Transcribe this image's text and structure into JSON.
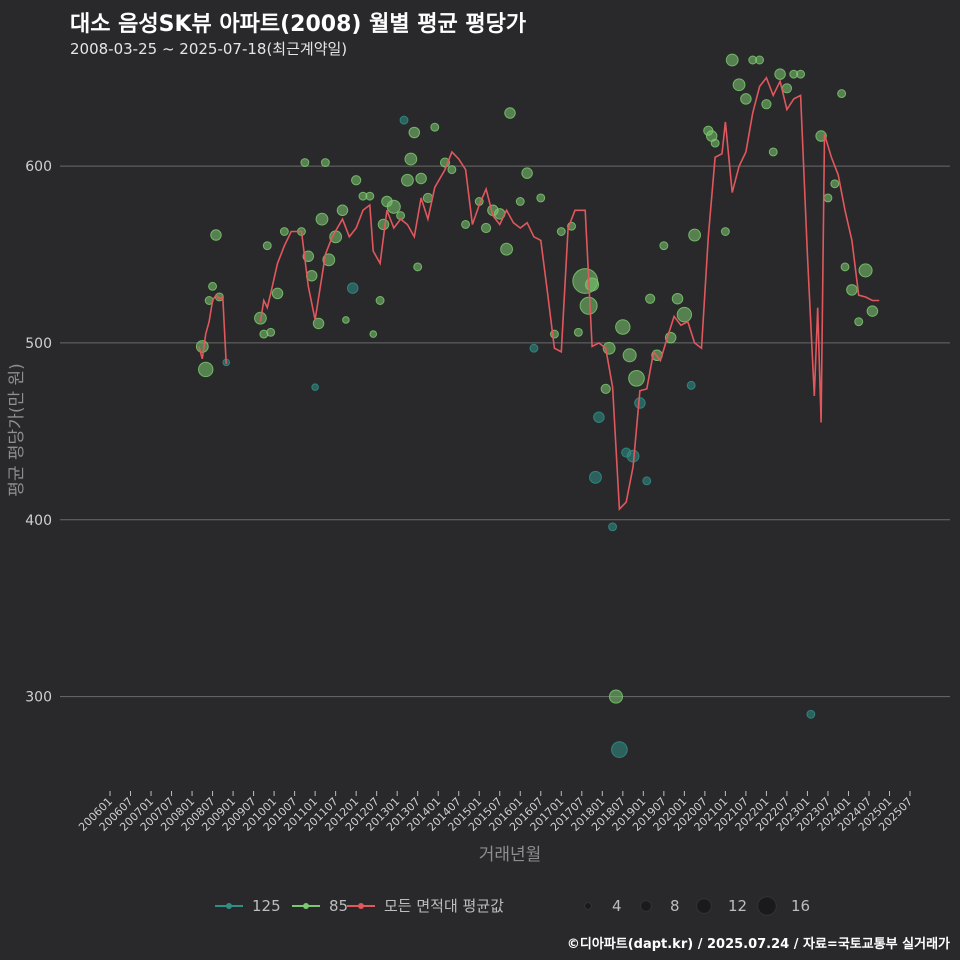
{
  "header": {
    "title": "대소 음성SK뷰 아파트(2008) 월별 평균 평당가",
    "subtitle": "2008-03-25 ~ 2025-07-18(최근계약일)"
  },
  "footer": {
    "credit": "©디아파트(dapt.kr) / 2025.07.24 / 자료=국토교통부 실거래가"
  },
  "colors": {
    "bg": "#29282b",
    "grid": "#6a6a6a",
    "s125": "#2f8f87",
    "s85": "#7bc96f",
    "avg": "#e0585d"
  },
  "chart_data": {
    "type": "line",
    "title": "대소 음성SK뷰 아파트(2008) 월별 평균 평당가",
    "xlabel": "거래년월",
    "ylabel": "평균 평당가(만 원)",
    "ylim": [
      250,
      660
    ],
    "yticks": [
      300,
      400,
      500,
      600
    ],
    "x_range": [
      "2006-01",
      "2025-07"
    ],
    "xticks": [
      "200601",
      "200607",
      "200701",
      "200707",
      "200801",
      "200807",
      "200901",
      "200907",
      "201001",
      "201007",
      "201101",
      "201107",
      "201201",
      "201207",
      "201301",
      "201307",
      "201401",
      "201407",
      "201501",
      "201507",
      "201601",
      "201607",
      "201701",
      "201707",
      "201801",
      "201807",
      "201901",
      "201907",
      "202001",
      "202007",
      "202101",
      "202107",
      "202201",
      "202207",
      "202301",
      "202307",
      "202401",
      "202407",
      "202501",
      "202507"
    ],
    "legend": {
      "area_items": [
        {
          "name": "125",
          "color": "#2f8f87"
        },
        {
          "name": "85",
          "color": "#7bc96f"
        },
        {
          "name": "모든 면적대 평균값",
          "color": "#e0585d"
        }
      ],
      "size_items": [
        4,
        8,
        12,
        16
      ]
    },
    "avg_line": [
      [
        "2008-03",
        498
      ],
      [
        "2008-04",
        491
      ],
      [
        "2008-05",
        505
      ],
      [
        "2008-06",
        512
      ],
      [
        "2008-07",
        524
      ],
      [
        "2008-08",
        527
      ],
      [
        "2008-09",
        525
      ],
      [
        "2008-10",
        526
      ],
      [
        "2008-11",
        488
      ],
      [
        "2009-09",
        512
      ],
      [
        "2009-10",
        524
      ],
      [
        "2009-11",
        520
      ],
      [
        "2009-12",
        528
      ],
      [
        "2010-02",
        545
      ],
      [
        "2010-04",
        555
      ],
      [
        "2010-06",
        563
      ],
      [
        "2010-09",
        563
      ],
      [
        "2010-11",
        532
      ],
      [
        "2011-01",
        513
      ],
      [
        "2011-04",
        550
      ],
      [
        "2011-06",
        560
      ],
      [
        "2011-09",
        570
      ],
      [
        "2011-11",
        560
      ],
      [
        "2012-01",
        565
      ],
      [
        "2012-03",
        575
      ],
      [
        "2012-05",
        578
      ],
      [
        "2012-06",
        552
      ],
      [
        "2012-08",
        545
      ],
      [
        "2012-10",
        575
      ],
      [
        "2012-12",
        565
      ],
      [
        "2013-02",
        570
      ],
      [
        "2013-04",
        567
      ],
      [
        "2013-06",
        560
      ],
      [
        "2013-08",
        582
      ],
      [
        "2013-10",
        570
      ],
      [
        "2013-12",
        588
      ],
      [
        "2014-03",
        598
      ],
      [
        "2014-05",
        608
      ],
      [
        "2014-07",
        604
      ],
      [
        "2014-09",
        598
      ],
      [
        "2014-11",
        567
      ],
      [
        "2015-01",
        578
      ],
      [
        "2015-03",
        587
      ],
      [
        "2015-05",
        572
      ],
      [
        "2015-07",
        567
      ],
      [
        "2015-09",
        575
      ],
      [
        "2015-11",
        568
      ],
      [
        "2016-01",
        565
      ],
      [
        "2016-03",
        568
      ],
      [
        "2016-05",
        560
      ],
      [
        "2016-07",
        558
      ],
      [
        "2016-09",
        528
      ],
      [
        "2016-11",
        497
      ],
      [
        "2017-01",
        495
      ],
      [
        "2017-03",
        565
      ],
      [
        "2017-05",
        575
      ],
      [
        "2017-08",
        575
      ],
      [
        "2017-10",
        498
      ],
      [
        "2017-12",
        500
      ],
      [
        "2018-02",
        497
      ],
      [
        "2018-04",
        475
      ],
      [
        "2018-06",
        406
      ],
      [
        "2018-08",
        410
      ],
      [
        "2018-10",
        430
      ],
      [
        "2018-12",
        473
      ],
      [
        "2019-02",
        474
      ],
      [
        "2019-04",
        495
      ],
      [
        "2019-06",
        490
      ],
      [
        "2019-08",
        503
      ],
      [
        "2019-10",
        515
      ],
      [
        "2019-12",
        510
      ],
      [
        "2020-02",
        512
      ],
      [
        "2020-04",
        500
      ],
      [
        "2020-06",
        497
      ],
      [
        "2020-08",
        560
      ],
      [
        "2020-10",
        605
      ],
      [
        "2020-12",
        607
      ],
      [
        "2021-01",
        625
      ],
      [
        "2021-03",
        585
      ],
      [
        "2021-05",
        600
      ],
      [
        "2021-07",
        608
      ],
      [
        "2021-09",
        630
      ],
      [
        "2021-11",
        645
      ],
      [
        "2022-01",
        650
      ],
      [
        "2022-03",
        640
      ],
      [
        "2022-05",
        648
      ],
      [
        "2022-07",
        632
      ],
      [
        "2022-09",
        638
      ],
      [
        "2022-11",
        640
      ],
      [
        "2023-01",
        550
      ],
      [
        "2023-03",
        470
      ],
      [
        "2023-04",
        520
      ],
      [
        "2023-05",
        455
      ],
      [
        "2023-06",
        618
      ],
      [
        "2023-08",
        605
      ],
      [
        "2023-10",
        595
      ],
      [
        "2023-12",
        575
      ],
      [
        "2024-02",
        558
      ],
      [
        "2024-04",
        527
      ],
      [
        "2024-06",
        526
      ],
      [
        "2024-08",
        524
      ],
      [
        "2024-10",
        524
      ]
    ],
    "points": [
      {
        "x": "2008-04",
        "y": 498,
        "size": 6,
        "series": "85"
      },
      {
        "x": "2008-05",
        "y": 485,
        "size": 8,
        "series": "85"
      },
      {
        "x": "2008-06",
        "y": 524,
        "size": 3,
        "series": "85"
      },
      {
        "x": "2008-07",
        "y": 532,
        "size": 3,
        "series": "85"
      },
      {
        "x": "2008-08",
        "y": 561,
        "size": 5,
        "series": "85"
      },
      {
        "x": "2008-09",
        "y": 526,
        "size": 3,
        "series": "85"
      },
      {
        "x": "2008-11",
        "y": 489,
        "size": 2,
        "series": "125"
      },
      {
        "x": "2009-09",
        "y": 514,
        "size": 6,
        "series": "85"
      },
      {
        "x": "2009-10",
        "y": 505,
        "size": 3,
        "series": "85"
      },
      {
        "x": "2009-11",
        "y": 555,
        "size": 3,
        "series": "85"
      },
      {
        "x": "2009-12",
        "y": 506,
        "size": 3,
        "series": "85"
      },
      {
        "x": "2010-02",
        "y": 528,
        "size": 5,
        "series": "85"
      },
      {
        "x": "2010-04",
        "y": 563,
        "size": 3,
        "series": "85"
      },
      {
        "x": "2010-09",
        "y": 563,
        "size": 3,
        "series": "85"
      },
      {
        "x": "2010-10",
        "y": 602,
        "size": 3,
        "series": "85"
      },
      {
        "x": "2010-11",
        "y": 549,
        "size": 5,
        "series": "85"
      },
      {
        "x": "2010-12",
        "y": 538,
        "size": 5,
        "series": "85"
      },
      {
        "x": "2011-01",
        "y": 475,
        "size": 2,
        "series": "125"
      },
      {
        "x": "2011-02",
        "y": 511,
        "size": 5,
        "series": "85"
      },
      {
        "x": "2011-03",
        "y": 570,
        "size": 6,
        "series": "85"
      },
      {
        "x": "2011-04",
        "y": 602,
        "size": 3,
        "series": "85"
      },
      {
        "x": "2011-05",
        "y": 547,
        "size": 6,
        "series": "85"
      },
      {
        "x": "2011-07",
        "y": 560,
        "size": 6,
        "series": "85"
      },
      {
        "x": "2011-09",
        "y": 575,
        "size": 5,
        "series": "85"
      },
      {
        "x": "2011-10",
        "y": 513,
        "size": 2,
        "series": "85"
      },
      {
        "x": "2011-12",
        "y": 531,
        "size": 5,
        "series": "125"
      },
      {
        "x": "2012-01",
        "y": 592,
        "size": 4,
        "series": "85"
      },
      {
        "x": "2012-03",
        "y": 583,
        "size": 3,
        "series": "85"
      },
      {
        "x": "2012-05",
        "y": 583,
        "size": 3,
        "series": "85"
      },
      {
        "x": "2012-06",
        "y": 505,
        "size": 2,
        "series": "85"
      },
      {
        "x": "2012-08",
        "y": 524,
        "size": 3,
        "series": "85"
      },
      {
        "x": "2012-09",
        "y": 567,
        "size": 5,
        "series": "85"
      },
      {
        "x": "2012-10",
        "y": 580,
        "size": 5,
        "series": "85"
      },
      {
        "x": "2012-12",
        "y": 577,
        "size": 7,
        "series": "85"
      },
      {
        "x": "2013-02",
        "y": 572,
        "size": 3,
        "series": "85"
      },
      {
        "x": "2013-03",
        "y": 626,
        "size": 3,
        "series": "125"
      },
      {
        "x": "2013-04",
        "y": 592,
        "size": 6,
        "series": "85"
      },
      {
        "x": "2013-05",
        "y": 604,
        "size": 6,
        "series": "85"
      },
      {
        "x": "2013-06",
        "y": 619,
        "size": 5,
        "series": "85"
      },
      {
        "x": "2013-07",
        "y": 543,
        "size": 3,
        "series": "85"
      },
      {
        "x": "2013-08",
        "y": 593,
        "size": 5,
        "series": "85"
      },
      {
        "x": "2013-10",
        "y": 582,
        "size": 4,
        "series": "85"
      },
      {
        "x": "2013-12",
        "y": 622,
        "size": 3,
        "series": "85"
      },
      {
        "x": "2014-03",
        "y": 602,
        "size": 4,
        "series": "85"
      },
      {
        "x": "2014-05",
        "y": 598,
        "size": 3,
        "series": "85"
      },
      {
        "x": "2014-09",
        "y": 567,
        "size": 3,
        "series": "85"
      },
      {
        "x": "2015-01",
        "y": 580,
        "size": 3,
        "series": "85"
      },
      {
        "x": "2015-03",
        "y": 565,
        "size": 4,
        "series": "85"
      },
      {
        "x": "2015-05",
        "y": 575,
        "size": 5,
        "series": "85"
      },
      {
        "x": "2015-07",
        "y": 573,
        "size": 5,
        "series": "85"
      },
      {
        "x": "2015-09",
        "y": 553,
        "size": 6,
        "series": "85"
      },
      {
        "x": "2015-10",
        "y": 630,
        "size": 5,
        "series": "85"
      },
      {
        "x": "2016-01",
        "y": 580,
        "size": 3,
        "series": "85"
      },
      {
        "x": "2016-03",
        "y": 596,
        "size": 5,
        "series": "85"
      },
      {
        "x": "2016-05",
        "y": 497,
        "size": 3,
        "series": "125"
      },
      {
        "x": "2016-07",
        "y": 582,
        "size": 3,
        "series": "85"
      },
      {
        "x": "2016-11",
        "y": 505,
        "size": 3,
        "series": "85"
      },
      {
        "x": "2017-01",
        "y": 563,
        "size": 3,
        "series": "85"
      },
      {
        "x": "2017-04",
        "y": 566,
        "size": 3,
        "series": "85"
      },
      {
        "x": "2017-06",
        "y": 506,
        "size": 3,
        "series": "85"
      },
      {
        "x": "2017-08",
        "y": 535,
        "size": 16,
        "series": "85"
      },
      {
        "x": "2017-09",
        "y": 521,
        "size": 10,
        "series": "85"
      },
      {
        "x": "2017-10",
        "y": 533,
        "size": 7,
        "series": "85"
      },
      {
        "x": "2017-11",
        "y": 424,
        "size": 6,
        "series": "125"
      },
      {
        "x": "2017-12",
        "y": 458,
        "size": 5,
        "series": "125"
      },
      {
        "x": "2018-02",
        "y": 474,
        "size": 4,
        "series": "85"
      },
      {
        "x": "2018-03",
        "y": 497,
        "size": 6,
        "series": "85"
      },
      {
        "x": "2018-04",
        "y": 396,
        "size": 3,
        "series": "125"
      },
      {
        "x": "2018-05",
        "y": 300,
        "size": 7,
        "series": "85"
      },
      {
        "x": "2018-06",
        "y": 270,
        "size": 9,
        "series": "125"
      },
      {
        "x": "2018-07",
        "y": 509,
        "size": 8,
        "series": "85"
      },
      {
        "x": "2018-08",
        "y": 438,
        "size": 4,
        "series": "125"
      },
      {
        "x": "2018-09",
        "y": 493,
        "size": 7,
        "series": "85"
      },
      {
        "x": "2018-10",
        "y": 436,
        "size": 6,
        "series": "125"
      },
      {
        "x": "2018-11",
        "y": 480,
        "size": 9,
        "series": "85"
      },
      {
        "x": "2018-12",
        "y": 466,
        "size": 5,
        "series": "125"
      },
      {
        "x": "2019-02",
        "y": 422,
        "size": 3,
        "series": "125"
      },
      {
        "x": "2019-03",
        "y": 525,
        "size": 4,
        "series": "85"
      },
      {
        "x": "2019-05",
        "y": 493,
        "size": 5,
        "series": "85"
      },
      {
        "x": "2019-07",
        "y": 555,
        "size": 3,
        "series": "85"
      },
      {
        "x": "2019-09",
        "y": 503,
        "size": 5,
        "series": "85"
      },
      {
        "x": "2019-11",
        "y": 525,
        "size": 5,
        "series": "85"
      },
      {
        "x": "2020-01",
        "y": 516,
        "size": 8,
        "series": "85"
      },
      {
        "x": "2020-03",
        "y": 476,
        "size": 3,
        "series": "125"
      },
      {
        "x": "2020-04",
        "y": 561,
        "size": 6,
        "series": "85"
      },
      {
        "x": "2020-08",
        "y": 620,
        "size": 4,
        "series": "85"
      },
      {
        "x": "2020-09",
        "y": 617,
        "size": 5,
        "series": "85"
      },
      {
        "x": "2020-10",
        "y": 613,
        "size": 3,
        "series": "85"
      },
      {
        "x": "2021-01",
        "y": 563,
        "size": 3,
        "series": "85"
      },
      {
        "x": "2021-03",
        "y": 660,
        "size": 6,
        "series": "85"
      },
      {
        "x": "2021-05",
        "y": 646,
        "size": 6,
        "series": "85"
      },
      {
        "x": "2021-07",
        "y": 638,
        "size": 5,
        "series": "85"
      },
      {
        "x": "2021-09",
        "y": 660,
        "size": 3,
        "series": "85"
      },
      {
        "x": "2021-11",
        "y": 660,
        "size": 3,
        "series": "85"
      },
      {
        "x": "2022-01",
        "y": 635,
        "size": 4,
        "series": "85"
      },
      {
        "x": "2022-03",
        "y": 608,
        "size": 3,
        "series": "85"
      },
      {
        "x": "2022-05",
        "y": 652,
        "size": 5,
        "series": "85"
      },
      {
        "x": "2022-07",
        "y": 644,
        "size": 4,
        "series": "85"
      },
      {
        "x": "2022-09",
        "y": 652,
        "size": 3,
        "series": "85"
      },
      {
        "x": "2022-11",
        "y": 652,
        "size": 3,
        "series": "85"
      },
      {
        "x": "2023-02",
        "y": 290,
        "size": 3,
        "series": "125"
      },
      {
        "x": "2023-05",
        "y": 617,
        "size": 5,
        "series": "85"
      },
      {
        "x": "2023-07",
        "y": 582,
        "size": 3,
        "series": "85"
      },
      {
        "x": "2023-09",
        "y": 590,
        "size": 3,
        "series": "85"
      },
      {
        "x": "2023-11",
        "y": 641,
        "size": 3,
        "series": "85"
      },
      {
        "x": "2023-12",
        "y": 543,
        "size": 3,
        "series": "85"
      },
      {
        "x": "2024-02",
        "y": 530,
        "size": 5,
        "series": "85"
      },
      {
        "x": "2024-04",
        "y": 512,
        "size": 3,
        "series": "85"
      },
      {
        "x": "2024-06",
        "y": 541,
        "size": 7,
        "series": "85"
      },
      {
        "x": "2024-08",
        "y": 518,
        "size": 5,
        "series": "85"
      }
    ]
  }
}
